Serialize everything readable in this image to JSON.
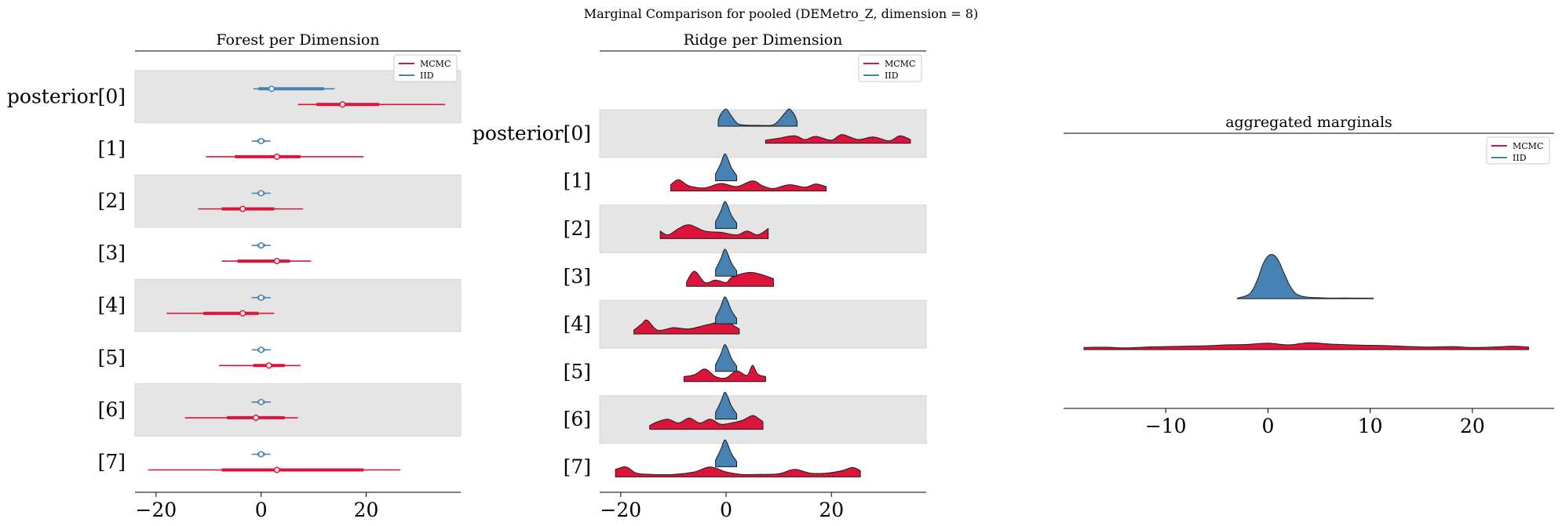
{
  "suptitle": "Marginal Comparison for pooled (DEMetro_Z, dimension = 8)",
  "colors": {
    "MCMC": "#dc143c",
    "IID": "#4682b4",
    "band": "#e5e5e5",
    "axis": "#000000"
  },
  "chart_data": [
    {
      "type": "forest",
      "title": "Forest per Dimension",
      "xlim": [
        -24,
        38
      ],
      "xticks": [
        -20,
        0,
        20
      ],
      "ylabels": [
        "posterior[0]",
        "[1]",
        "[2]",
        "[3]",
        "[4]",
        "[5]",
        "[6]",
        "[7]"
      ],
      "legend": {
        "placement": "top-right",
        "entries": [
          "MCMC",
          "IID"
        ]
      },
      "series": [
        {
          "name": "IID",
          "rows": [
            {
              "hdi94": [
                -1.5,
                14
              ],
              "hdi50": [
                -0.5,
                12
              ],
              "median": 2
            },
            {
              "hdi94": [
                -1.8,
                1.8
              ],
              "hdi50": [
                -0.7,
                0.7
              ],
              "median": 0
            },
            {
              "hdi94": [
                -1.8,
                1.8
              ],
              "hdi50": [
                -0.7,
                0.7
              ],
              "median": 0
            },
            {
              "hdi94": [
                -1.8,
                1.8
              ],
              "hdi50": [
                -0.7,
                0.7
              ],
              "median": 0
            },
            {
              "hdi94": [
                -1.8,
                1.8
              ],
              "hdi50": [
                -0.7,
                0.7
              ],
              "median": 0
            },
            {
              "hdi94": [
                -1.8,
                1.8
              ],
              "hdi50": [
                -0.7,
                0.7
              ],
              "median": 0
            },
            {
              "hdi94": [
                -1.8,
                1.8
              ],
              "hdi50": [
                -0.7,
                0.7
              ],
              "median": 0
            },
            {
              "hdi94": [
                -1.8,
                1.8
              ],
              "hdi50": [
                -0.7,
                0.7
              ],
              "median": 0
            }
          ]
        },
        {
          "name": "MCMC",
          "rows": [
            {
              "hdi94": [
                7,
                35
              ],
              "hdi50": [
                10.5,
                22.5
              ],
              "median": 15.5
            },
            {
              "hdi94": [
                -10.5,
                19.5
              ],
              "hdi50": [
                -5,
                7.5
              ],
              "median": 3
            },
            {
              "hdi94": [
                -12,
                8
              ],
              "hdi50": [
                -7.5,
                2.5
              ],
              "median": -3.5
            },
            {
              "hdi94": [
                -7.5,
                9.5
              ],
              "hdi50": [
                -4.5,
                5.5
              ],
              "median": 3
            },
            {
              "hdi94": [
                -18,
                2.5
              ],
              "hdi50": [
                -11,
                -0.5
              ],
              "median": -3.5
            },
            {
              "hdi94": [
                -8,
                7.5
              ],
              "hdi50": [
                -1.5,
                4.5
              ],
              "median": 1.5
            },
            {
              "hdi94": [
                -14.5,
                7
              ],
              "hdi50": [
                -6.5,
                4.5
              ],
              "median": -1
            },
            {
              "hdi94": [
                -21.5,
                26.5
              ],
              "hdi50": [
                -7.5,
                19.5
              ],
              "median": 3
            }
          ]
        }
      ]
    },
    {
      "type": "ridgeline",
      "title": "Ridge per Dimension",
      "xlim": [
        -24,
        38
      ],
      "xticks": [
        -20,
        0,
        20
      ],
      "ylabels": [
        "posterior[0]",
        "[1]",
        "[2]",
        "[3]",
        "[4]",
        "[5]",
        "[6]",
        "[7]"
      ],
      "legend": {
        "placement": "top-right",
        "entries": [
          "MCMC",
          "IID"
        ]
      },
      "series": [
        {
          "name": "IID",
          "rows": [
            {
              "x": [
                -1.5,
                -1,
                0,
                1,
                2,
                3,
                6,
                9,
                11,
                12,
                13,
                13.5
              ],
              "y": [
                0.35,
                0.7,
                1,
                0.6,
                0.2,
                0.08,
                0.05,
                0.08,
                0.7,
                1,
                0.65,
                0.25
              ]
            },
            {
              "x": [
                -2,
                -1,
                -0.3,
                0.3,
                1,
                2
              ],
              "y": [
                0.25,
                0.65,
                1,
                0.85,
                0.5,
                0.2
              ]
            },
            {
              "x": [
                -2,
                -1,
                -0.3,
                0.3,
                1,
                2
              ],
              "y": [
                0.25,
                0.65,
                1,
                0.85,
                0.5,
                0.2
              ]
            },
            {
              "x": [
                -2,
                -1,
                -0.3,
                0.3,
                1,
                2
              ],
              "y": [
                0.25,
                0.65,
                1,
                0.85,
                0.5,
                0.2
              ]
            },
            {
              "x": [
                -2,
                -1,
                -0.3,
                0.3,
                1,
                2
              ],
              "y": [
                0.25,
                0.65,
                1,
                0.85,
                0.5,
                0.2
              ]
            },
            {
              "x": [
                -2,
                -1,
                -0.3,
                0.3,
                1,
                2
              ],
              "y": [
                0.25,
                0.65,
                1,
                0.85,
                0.5,
                0.2
              ]
            },
            {
              "x": [
                -2,
                -1,
                -0.3,
                0.3,
                1,
                2
              ],
              "y": [
                0.25,
                0.65,
                1,
                0.85,
                0.5,
                0.2
              ]
            },
            {
              "x": [
                -2,
                -1,
                -0.3,
                0.3,
                1,
                2
              ],
              "y": [
                0.25,
                0.65,
                1,
                0.85,
                0.5,
                0.2
              ]
            }
          ]
        },
        {
          "name": "MCMC",
          "rows": [
            {
              "x": [
                7.5,
                10,
                13,
                15,
                17,
                20,
                22,
                25,
                28,
                31,
                33,
                35
              ],
              "y": [
                0.25,
                0.4,
                0.6,
                0.3,
                0.55,
                0.25,
                0.7,
                0.3,
                0.5,
                0.2,
                0.6,
                0.3
              ]
            },
            {
              "x": [
                -10.5,
                -9,
                -7,
                -4,
                -1,
                2,
                5,
                7,
                9,
                12,
                15,
                17,
                19
              ],
              "y": [
                0.5,
                0.9,
                0.4,
                0.25,
                0.6,
                0.35,
                0.8,
                0.4,
                0.2,
                0.5,
                0.3,
                0.55,
                0.35
              ]
            },
            {
              "x": [
                -12.5,
                -11,
                -9,
                -7,
                -4,
                -1,
                2,
                4,
                6,
                8
              ],
              "y": [
                0.6,
                0.3,
                0.8,
                1.1,
                0.6,
                0.5,
                0.3,
                0.6,
                0.3,
                0.8
              ]
            },
            {
              "x": [
                -7.5,
                -6,
                -4,
                -2,
                0,
                1,
                3,
                5,
                7,
                9
              ],
              "y": [
                0.35,
                1.2,
                0.3,
                0.5,
                0.3,
                0.7,
                1,
                1.1,
                0.9,
                0.6
              ]
            },
            {
              "x": [
                -17.5,
                -16,
                -15,
                -13,
                -10,
                -7,
                -4,
                -2,
                0,
                1,
                2.5
              ],
              "y": [
                0.3,
                0.8,
                1.1,
                0.3,
                0.5,
                0.4,
                0.7,
                0.9,
                1.3,
                0.8,
                0.4
              ]
            },
            {
              "x": [
                -8,
                -6,
                -4,
                -2,
                0,
                2,
                4,
                5,
                6,
                7.5
              ],
              "y": [
                0.4,
                0.55,
                1,
                0.4,
                0.3,
                0.85,
                0.5,
                1.3,
                0.6,
                0.4
              ]
            },
            {
              "x": [
                -14.5,
                -13,
                -11,
                -9,
                -7,
                -5,
                -3,
                -1,
                1,
                3,
                5,
                6,
                7
              ],
              "y": [
                0.3,
                0.6,
                0.8,
                0.5,
                0.9,
                0.5,
                0.8,
                0.4,
                0.5,
                0.7,
                1.1,
                0.9,
                0.6
              ]
            },
            {
              "x": [
                -21,
                -19,
                -17,
                -14,
                -10,
                -6,
                -3,
                0,
                3,
                6,
                10,
                13,
                16,
                19,
                22,
                24,
                25.5
              ],
              "y": [
                0.6,
                0.8,
                0.3,
                0.2,
                0.2,
                0.4,
                0.8,
                0.4,
                0.2,
                0.2,
                0.25,
                0.6,
                0.3,
                0.3,
                0.5,
                0.75,
                0.5
              ]
            }
          ]
        }
      ]
    },
    {
      "type": "ridgeline",
      "title": "aggregated marginals",
      "xlim": [
        -20,
        28
      ],
      "xticks": [
        -10,
        0,
        10,
        20
      ],
      "ylabels": [],
      "legend": {
        "placement": "top-right",
        "entries": [
          "MCMC",
          "IID"
        ]
      },
      "series": [
        {
          "name": "IID",
          "x": [
            -3,
            -2,
            -1.5,
            -1,
            -0.5,
            0,
            0.5,
            1,
            1.5,
            2,
            2.5,
            3,
            4,
            6,
            8,
            10.3
          ],
          "y": [
            0.01,
            0.08,
            0.2,
            0.45,
            0.78,
            0.97,
            1,
            0.88,
            0.62,
            0.36,
            0.17,
            0.08,
            0.03,
            0.015,
            0.015,
            0.01
          ]
        },
        {
          "name": "MCMC",
          "x": [
            -18,
            -16,
            -14,
            -12,
            -10,
            -8,
            -6,
            -4,
            -2,
            0,
            2,
            4,
            6,
            8,
            10,
            12,
            14,
            16,
            18,
            20,
            22,
            24,
            25.5
          ],
          "y": [
            0.25,
            0.28,
            0.2,
            0.3,
            0.35,
            0.4,
            0.45,
            0.55,
            0.6,
            0.75,
            0.55,
            0.8,
            0.65,
            0.55,
            0.5,
            0.45,
            0.35,
            0.3,
            0.35,
            0.25,
            0.3,
            0.4,
            0.3
          ]
        }
      ]
    }
  ]
}
